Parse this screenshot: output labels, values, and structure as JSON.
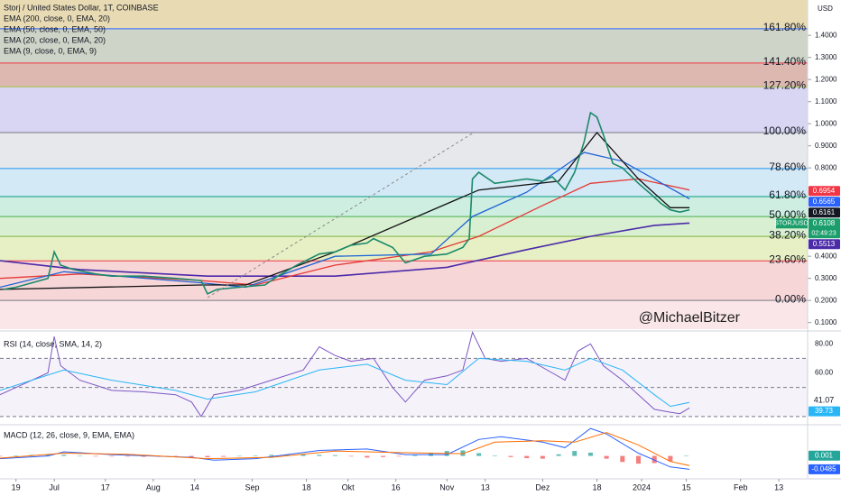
{
  "chart_data": [
    {
      "type": "line",
      "title": "Storj / United States Dollar, 1T, COINBASE",
      "axis_unit": "USD",
      "watermark": "@MichaelBitzer",
      "xlim": [
        -5,
        248
      ],
      "ylim": [
        0.07,
        1.56
      ],
      "xticks": [
        {
          "value": 0,
          "label": "19"
        },
        {
          "value": 12,
          "label": "Jul"
        },
        {
          "value": 28,
          "label": "17"
        },
        {
          "value": 43,
          "label": "Aug"
        },
        {
          "value": 56,
          "label": "14"
        },
        {
          "value": 74,
          "label": "Sep"
        },
        {
          "value": 91,
          "label": "18"
        },
        {
          "value": 104,
          "label": "Okt"
        },
        {
          "value": 119,
          "label": "16"
        },
        {
          "value": 135,
          "label": "Nov"
        },
        {
          "value": 147,
          "label": "13"
        },
        {
          "value": 165,
          "label": "Dez"
        },
        {
          "value": 182,
          "label": "18"
        },
        {
          "value": 196,
          "label": "2024"
        },
        {
          "value": 210,
          "label": "15"
        },
        {
          "value": 227,
          "label": "Feb"
        },
        {
          "value": 239,
          "label": "13"
        }
      ],
      "yticks": [
        {
          "value": 0.1,
          "label": "0.1000"
        },
        {
          "value": 0.2,
          "label": "0.2000"
        },
        {
          "value": 0.3,
          "label": "0.3000"
        },
        {
          "value": 0.4,
          "label": "0.4000"
        },
        {
          "value": 0.8,
          "label": "0.8000"
        },
        {
          "value": 0.9,
          "label": "0.9000"
        },
        {
          "value": 1.0,
          "label": "1.0000"
        },
        {
          "value": 1.1,
          "label": "1.1000"
        },
        {
          "value": 1.2,
          "label": "1.2000"
        },
        {
          "value": 1.3,
          "label": "1.3000"
        },
        {
          "value": 1.4,
          "label": "1.4000"
        }
      ],
      "fib_levels": [
        {
          "label": "0.00%",
          "value": 0.2,
          "color": "#787b86",
          "fill": "#f7d6d8"
        },
        {
          "label": "23.60%",
          "value": 0.379,
          "color": "#f23645",
          "fill": "#e6f0c4"
        },
        {
          "label": "38.20%",
          "value": 0.49,
          "color": "#7cb342",
          "fill": "#d9efd2"
        },
        {
          "label": "50.00%",
          "value": 0.58,
          "color": "#4caf50",
          "fill": "#cdeee0"
        },
        {
          "label": "61.80%",
          "value": 0.67,
          "color": "#089981",
          "fill": "#d3e9f5"
        },
        {
          "label": "78.60%",
          "value": 0.797,
          "color": "#2196f3",
          "fill": "#e6e8ec"
        },
        {
          "label": "100.00%",
          "value": 0.96,
          "color": "#787b86",
          "fill": "#d8d6f2"
        },
        {
          "label": "127.20%",
          "value": 1.167,
          "color": "#a5c04a",
          "fill": "#dcb8b0"
        },
        {
          "label": "141.40%",
          "value": 1.275,
          "color": "#f23645",
          "fill": "#cfd4c8"
        },
        {
          "label": "161.80%",
          "value": 1.43,
          "color": "#2962ff",
          "fill": "#e8dbb4"
        }
      ],
      "price": {
        "color": "#1b8a6b",
        "x": [
          -4,
          0,
          5,
          10,
          12,
          14,
          18,
          25,
          30,
          40,
          50,
          58,
          60,
          63,
          70,
          78,
          82,
          88,
          95,
          100,
          105,
          110,
          112,
          118,
          122,
          128,
          135,
          140,
          142,
          143,
          145,
          150,
          160,
          165,
          168,
          172,
          175,
          178,
          180,
          182,
          184,
          187,
          190,
          195,
          199,
          202,
          205,
          208,
          211
        ],
        "values": [
          0.25,
          0.26,
          0.28,
          0.3,
          0.42,
          0.36,
          0.34,
          0.32,
          0.31,
          0.31,
          0.3,
          0.29,
          0.23,
          0.25,
          0.26,
          0.27,
          0.31,
          0.36,
          0.41,
          0.42,
          0.45,
          0.46,
          0.48,
          0.44,
          0.37,
          0.4,
          0.41,
          0.44,
          0.48,
          0.75,
          0.78,
          0.73,
          0.75,
          0.74,
          0.76,
          0.7,
          0.78,
          0.92,
          1.05,
          1.03,
          0.95,
          0.82,
          0.8,
          0.73,
          0.68,
          0.64,
          0.61,
          0.6,
          0.61
        ]
      },
      "series": [
        {
          "name": "EMA (200, close, 0, EMA, 20)",
          "color": "#4b2ba8",
          "x": [
            -5,
            20,
            60,
            100,
            135,
            160,
            180,
            200,
            211
          ],
          "values": [
            0.38,
            0.34,
            0.31,
            0.31,
            0.35,
            0.43,
            0.49,
            0.54,
            0.55
          ]
        },
        {
          "name": "EMA (50, close, 0, EMA, 50)",
          "color": "#e53935",
          "x": [
            -5,
            20,
            58,
            75,
            100,
            130,
            145,
            165,
            180,
            195,
            211
          ],
          "values": [
            0.3,
            0.32,
            0.29,
            0.27,
            0.36,
            0.42,
            0.49,
            0.63,
            0.73,
            0.75,
            0.7
          ]
        },
        {
          "name": "EMA (20, close, 0, EMA, 20)",
          "color": "#1e63d6",
          "x": [
            -5,
            15,
            58,
            72,
            100,
            130,
            143,
            160,
            178,
            190,
            211
          ],
          "values": [
            0.26,
            0.33,
            0.28,
            0.26,
            0.4,
            0.41,
            0.58,
            0.69,
            0.87,
            0.83,
            0.66
          ]
        },
        {
          "name": "EMA (9, close, 0, EMA, 9)",
          "color": "#111111",
          "x": [
            -5,
            58,
            72,
            100,
            145,
            170,
            182,
            195,
            205,
            211
          ],
          "values": [
            0.25,
            0.27,
            0.27,
            0.42,
            0.7,
            0.74,
            0.96,
            0.75,
            0.62,
            0.62
          ]
        }
      ],
      "price_labels": [
        {
          "value": 0.6954,
          "color": "#f23645"
        },
        {
          "value": 0.6565,
          "color": "#2962ff"
        },
        {
          "value": 0.6161,
          "color": "#131722"
        },
        {
          "value": 0.6108,
          "color": "#1b9e6b",
          "name": "STORJUSD",
          "countdown": "02:49:23"
        },
        {
          "value": 0.5513,
          "color": "#4b2ba8"
        }
      ]
    },
    {
      "type": "line",
      "title": "RSI (14, close, SMA, 14, 2)",
      "ylim": [
        25,
        87
      ],
      "yticks": [
        {
          "value": 80,
          "label": "80.00"
        },
        {
          "value": 60,
          "label": "60.00"
        }
      ],
      "hlines": [
        70,
        50,
        30
      ],
      "series": [
        {
          "color": "#7e57c2",
          "x": [
            -5,
            0,
            10,
            12,
            14,
            20,
            30,
            40,
            50,
            55,
            58,
            62,
            70,
            80,
            90,
            95,
            100,
            105,
            112,
            118,
            122,
            128,
            135,
            140,
            143,
            147,
            152,
            160,
            168,
            172,
            176,
            180,
            184,
            190,
            195,
            200,
            205,
            208,
            211
          ],
          "values": [
            45,
            50,
            60,
            85,
            65,
            55,
            48,
            47,
            45,
            40,
            30,
            45,
            48,
            55,
            62,
            78,
            72,
            68,
            70,
            50,
            40,
            55,
            58,
            62,
            88,
            70,
            68,
            70,
            60,
            55,
            75,
            80,
            65,
            55,
            45,
            35,
            33,
            32,
            36
          ]
        },
        {
          "color": "#29b6f6",
          "x": [
            -5,
            15,
            30,
            50,
            60,
            75,
            95,
            110,
            122,
            135,
            145,
            160,
            172,
            180,
            190,
            200,
            205,
            211
          ],
          "values": [
            48,
            62,
            55,
            48,
            42,
            47,
            62,
            66,
            55,
            52,
            70,
            68,
            62,
            70,
            62,
            45,
            37,
            39.73
          ]
        }
      ],
      "price_labels": [
        {
          "value": 41.07,
          "color": "none"
        },
        {
          "value": 39.73,
          "color": "#29b6f6"
        }
      ]
    },
    {
      "type": "line",
      "title": "MACD (12, 26, close, 9, EMA, EMA)",
      "ylim": [
        -0.08,
        0.11
      ],
      "histogram": {
        "up": "#26a69a",
        "down": "#ef5350",
        "x": [
          -5,
          0,
          5,
          10,
          15,
          20,
          25,
          30,
          35,
          40,
          45,
          50,
          55,
          60,
          65,
          70,
          75,
          80,
          85,
          90,
          95,
          100,
          105,
          110,
          115,
          120,
          125,
          130,
          135,
          140,
          145,
          150,
          155,
          160,
          165,
          170,
          175,
          180,
          185,
          190,
          195,
          200,
          205,
          210
        ],
        "values": [
          -0.002,
          0.002,
          0.004,
          0.006,
          0.004,
          0.0,
          -0.002,
          -0.002,
          -0.002,
          -0.003,
          -0.003,
          -0.002,
          -0.004,
          -0.005,
          -0.003,
          0.0,
          0.002,
          0.004,
          0.004,
          0.005,
          0.004,
          0.003,
          -0.002,
          -0.006,
          -0.004,
          -0.002,
          0.003,
          0.012,
          0.018,
          0.02,
          0.01,
          0.002,
          -0.004,
          -0.008,
          -0.01,
          0.006,
          0.018,
          0.012,
          -0.01,
          -0.022,
          -0.028,
          -0.026,
          -0.02,
          0.001
        ]
      },
      "series": [
        {
          "color": "#2962ff",
          "x": [
            -5,
            10,
            15,
            30,
            55,
            62,
            75,
            95,
            110,
            122,
            135,
            145,
            152,
            165,
            172,
            180,
            185,
            195,
            205,
            211
          ],
          "values": [
            -0.01,
            0.0,
            0.015,
            0.005,
            -0.005,
            -0.015,
            -0.01,
            0.02,
            0.025,
            0.005,
            0.005,
            0.06,
            0.07,
            0.05,
            0.03,
            0.1,
            0.08,
            0.01,
            -0.04,
            -0.0485
          ]
        },
        {
          "color": "#ff6d00",
          "x": [
            -5,
            15,
            35,
            60,
            80,
            100,
            120,
            140,
            150,
            165,
            175,
            185,
            195,
            205,
            211
          ],
          "values": [
            -0.008,
            0.01,
            0.006,
            -0.01,
            -0.005,
            0.018,
            0.012,
            0.008,
            0.05,
            0.055,
            0.05,
            0.085,
            0.04,
            -0.02,
            -0.035
          ]
        }
      ],
      "price_labels": [
        {
          "value": 0.001,
          "color": "#26a69a"
        },
        {
          "value": -0.0485,
          "color": "#2962ff"
        }
      ]
    }
  ]
}
